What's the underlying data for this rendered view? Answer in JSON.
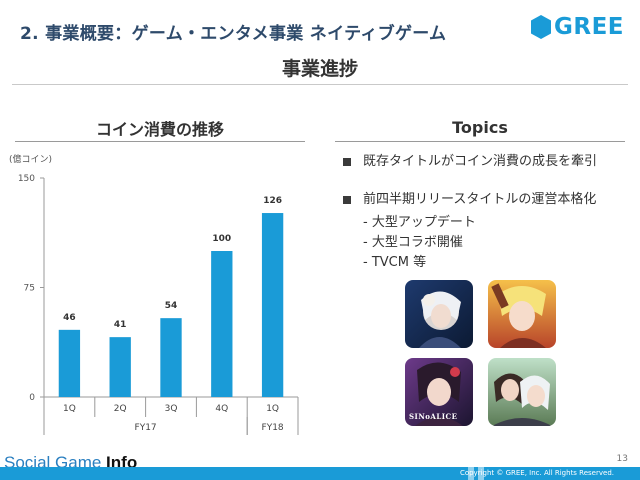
{
  "header": {
    "title": "2. 事業概要：ゲーム・エンタメ事業 ネイティブゲーム",
    "subtitle": "事業進捗",
    "logo_text": "GREE",
    "logo_color": "#1a9bd7"
  },
  "left": {
    "section_title": "コイン消費の推移",
    "unit_label": "(億コイン)"
  },
  "chart_data": {
    "type": "bar",
    "categories": [
      "1Q",
      "2Q",
      "3Q",
      "4Q",
      "1Q"
    ],
    "groups": [
      {
        "label": "FY17",
        "span": [
          0,
          3
        ]
      },
      {
        "label": "FY18",
        "span": [
          4,
          4
        ]
      }
    ],
    "values": [
      46,
      41,
      54,
      100,
      126
    ],
    "value_labels": [
      "46",
      "41",
      "54",
      "100",
      "126"
    ],
    "yticks": [
      0,
      75,
      150
    ],
    "ylim": [
      0,
      150
    ],
    "bar_color": "#1a9bd7"
  },
  "topics": {
    "title": "Topics",
    "items": [
      {
        "text": "既存タイトルがコイン消費の成長を牽引",
        "sub": []
      },
      {
        "text": "前四半期リリースタイトルの運営本格化",
        "sub": [
          "- 大型アップデート",
          "- 大型コラボ開催",
          "- TVCM 等"
        ]
      }
    ],
    "game_thumbnails": [
      {
        "name": "game-thumbnail-1",
        "caption": ""
      },
      {
        "name": "game-thumbnail-2",
        "caption": ""
      },
      {
        "name": "game-thumbnail-3",
        "caption": "SINoALICE"
      },
      {
        "name": "game-thumbnail-4",
        "caption": ""
      }
    ]
  },
  "footer": {
    "watermark_part1": "Social Game ",
    "watermark_part2": "Info",
    "copyright": "Copyright © GREE, Inc. All Rights Reserved.",
    "page_number": "13",
    "bar_color": "#1a9bd7"
  }
}
